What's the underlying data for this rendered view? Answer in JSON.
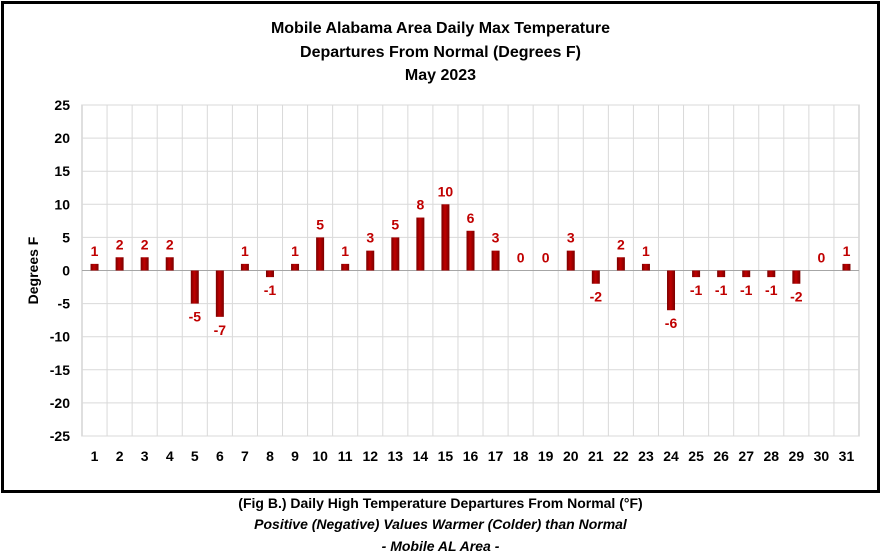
{
  "chart_data": {
    "type": "bar",
    "title": [
      "Mobile Alabama Area Daily Max Temperature",
      "Departures From Normal (Degrees F)",
      "May 2023"
    ],
    "xlabel": "",
    "ylabel": "Degrees F",
    "ylim": [
      -25,
      25
    ],
    "yticks": [
      25,
      20,
      15,
      10,
      5,
      0,
      -5,
      -10,
      -15,
      -20,
      -25
    ],
    "grid": true,
    "categories": [
      "1",
      "2",
      "3",
      "4",
      "5",
      "6",
      "7",
      "8",
      "9",
      "10",
      "11",
      "12",
      "13",
      "14",
      "15",
      "16",
      "17",
      "18",
      "19",
      "20",
      "21",
      "22",
      "23",
      "24",
      "25",
      "26",
      "27",
      "28",
      "29",
      "30",
      "31"
    ],
    "values": [
      1,
      2,
      2,
      2,
      -5,
      -7,
      1,
      -1,
      1,
      5,
      1,
      3,
      5,
      8,
      10,
      6,
      3,
      0,
      0,
      3,
      -2,
      2,
      1,
      -6,
      -1,
      -1,
      -1,
      -1,
      -2,
      0,
      1
    ],
    "colors": {
      "bar": "#c00000",
      "bar_dark": "#7a0000",
      "label": "#c00000",
      "grid": "#d9d9d9"
    }
  },
  "caption": {
    "line1": "(Fig B.) Daily High Temperature Departures From Normal (°F)",
    "line2": "Positive (Negative) Values Warmer (Colder) than Normal",
    "line3": "- Mobile AL Area -"
  }
}
